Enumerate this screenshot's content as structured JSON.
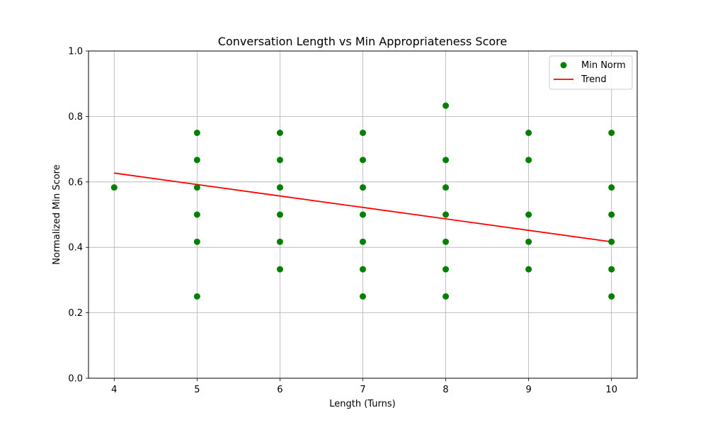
{
  "chart_data": {
    "type": "scatter",
    "title": "Conversation Length vs Min Appropriateness Score",
    "xlabel": "Length (Turns)",
    "ylabel": "Normalized Min Score",
    "xlim": [
      3.69,
      10.31
    ],
    "ylim": [
      0.0,
      1.0
    ],
    "x_ticks": [
      4,
      5,
      6,
      7,
      8,
      9,
      10
    ],
    "y_ticks": [
      0.0,
      0.2,
      0.4,
      0.6,
      0.8,
      1.0
    ],
    "x_tick_labels": [
      "4",
      "5",
      "6",
      "7",
      "8",
      "9",
      "10"
    ],
    "y_tick_labels": [
      "0.0",
      "0.2",
      "0.4",
      "0.6",
      "0.8",
      "1.0"
    ],
    "grid": true,
    "legend_position": "top-right",
    "series": [
      {
        "name": "Min Norm",
        "kind": "scatter",
        "color": "#008000",
        "points": [
          [
            4,
            0.583
          ],
          [
            5,
            0.75
          ],
          [
            5,
            0.667
          ],
          [
            5,
            0.583
          ],
          [
            5,
            0.5
          ],
          [
            5,
            0.417
          ],
          [
            5,
            0.25
          ],
          [
            6,
            0.75
          ],
          [
            6,
            0.667
          ],
          [
            6,
            0.583
          ],
          [
            6,
            0.5
          ],
          [
            6,
            0.417
          ],
          [
            6,
            0.333
          ],
          [
            7,
            0.75
          ],
          [
            7,
            0.667
          ],
          [
            7,
            0.583
          ],
          [
            7,
            0.5
          ],
          [
            7,
            0.417
          ],
          [
            7,
            0.333
          ],
          [
            7,
            0.25
          ],
          [
            8,
            0.833
          ],
          [
            8,
            0.667
          ],
          [
            8,
            0.583
          ],
          [
            8,
            0.5
          ],
          [
            8,
            0.417
          ],
          [
            8,
            0.333
          ],
          [
            8,
            0.25
          ],
          [
            9,
            0.75
          ],
          [
            9,
            0.667
          ],
          [
            9,
            0.5
          ],
          [
            9,
            0.417
          ],
          [
            9,
            0.333
          ],
          [
            10,
            0.75
          ],
          [
            10,
            0.583
          ],
          [
            10,
            0.5
          ],
          [
            10,
            0.417
          ],
          [
            10,
            0.333
          ],
          [
            10,
            0.25
          ]
        ]
      },
      {
        "name": "Trend",
        "kind": "line",
        "color": "#ff0000",
        "points": [
          [
            4,
            0.627
          ],
          [
            10,
            0.417
          ]
        ]
      }
    ]
  }
}
